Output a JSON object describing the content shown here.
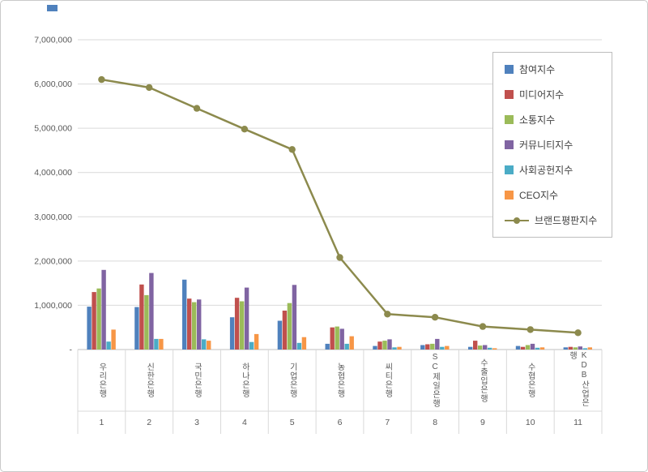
{
  "ui": {
    "background": "#ffffff",
    "frame_border": "#c9c9c9",
    "grid_color": "#d9d9d9",
    "axis_color": "#bfbfbf",
    "text_color": "#595959",
    "legend_border": "#bdbdbd",
    "legend_text_color": "#404040",
    "artifact_color": "#4f81bd"
  },
  "chart_data": {
    "type": "bar+line",
    "title": "",
    "xlabel": "",
    "ylabel": "",
    "grid": true,
    "legend_position": "right-top",
    "ylim": [
      0,
      7000000
    ],
    "ytick_step": 1000000,
    "ytick_labels": [
      "-",
      "1,000,000",
      "2,000,000",
      "3,000,000",
      "4,000,000",
      "5,000,000",
      "6,000,000",
      "7,000,000"
    ],
    "categories": [
      "우리은행",
      "신한은행",
      "국민은행",
      "하나은행",
      "기업은행",
      "농협은행",
      "씨티은행",
      "SC제일은행",
      "수출입은행",
      "수협은행",
      "KDB산업은행"
    ],
    "category_numbers": [
      "1",
      "2",
      "3",
      "4",
      "5",
      "6",
      "7",
      "8",
      "9",
      "10",
      "11"
    ],
    "bar_series": [
      {
        "name": "참여지수",
        "color": "#4F81BD",
        "values": [
          970000,
          960000,
          1580000,
          730000,
          650000,
          130000,
          80000,
          100000,
          60000,
          80000,
          50000
        ]
      },
      {
        "name": "미디어지수",
        "color": "#C0504D",
        "values": [
          1300000,
          1470000,
          1150000,
          1170000,
          880000,
          500000,
          180000,
          120000,
          200000,
          60000,
          60000
        ]
      },
      {
        "name": "소통지수",
        "color": "#9BBB59",
        "values": [
          1380000,
          1230000,
          1070000,
          1090000,
          1050000,
          520000,
          200000,
          130000,
          90000,
          100000,
          50000
        ]
      },
      {
        "name": "커뮤니티지수",
        "color": "#8064A2",
        "values": [
          1800000,
          1730000,
          1130000,
          1400000,
          1460000,
          470000,
          230000,
          240000,
          100000,
          130000,
          70000
        ]
      },
      {
        "name": "사회공헌지수",
        "color": "#4BACC6",
        "values": [
          180000,
          240000,
          230000,
          170000,
          150000,
          130000,
          50000,
          60000,
          40000,
          40000,
          30000
        ]
      },
      {
        "name": "CEO지수",
        "color": "#F79646",
        "values": [
          450000,
          240000,
          200000,
          350000,
          280000,
          300000,
          60000,
          80000,
          30000,
          50000,
          50000
        ]
      }
    ],
    "line_series": {
      "name": "브랜드평판지수",
      "color": "#8C8A4D",
      "values": [
        6100000,
        5920000,
        5450000,
        4980000,
        4520000,
        2080000,
        800000,
        730000,
        520000,
        450000,
        380000
      ]
    }
  }
}
